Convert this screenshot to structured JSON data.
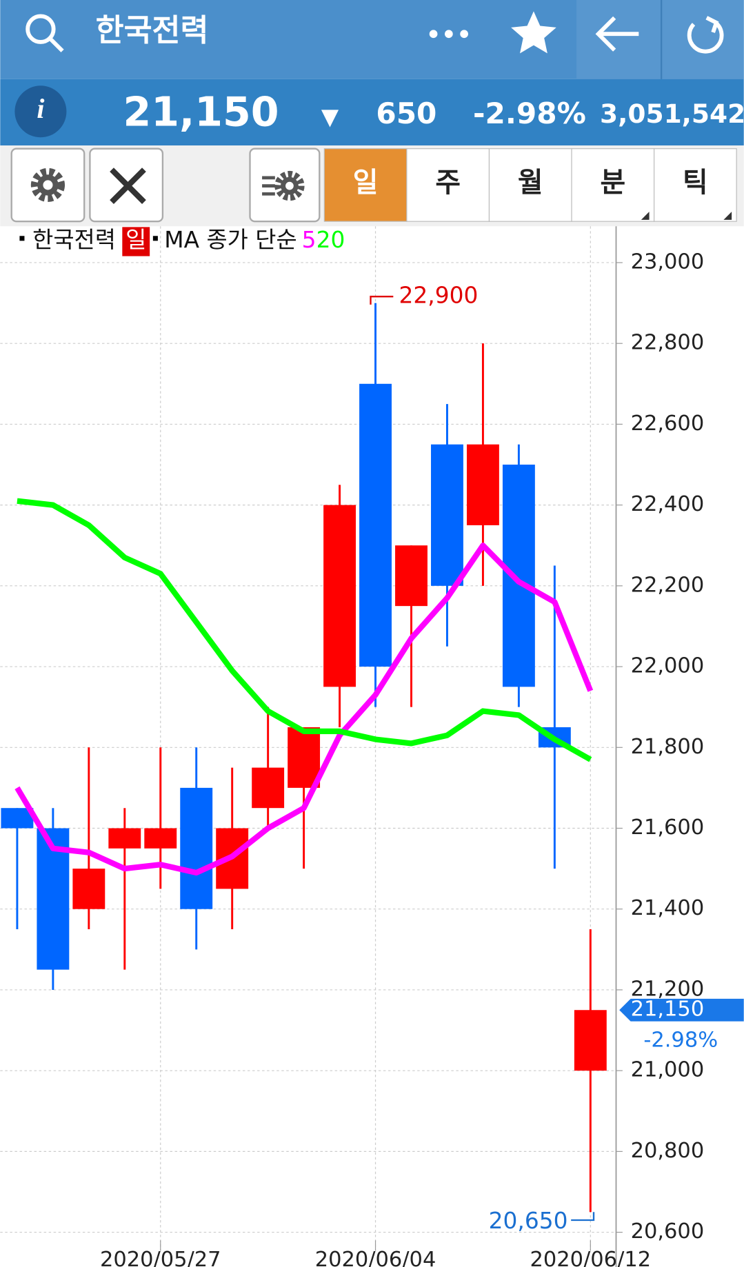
{
  "header": {
    "title": "한국전력"
  },
  "quote": {
    "info": "i",
    "price": "21,150",
    "arrow": "▼",
    "change": "650",
    "change_pct": "-2.98%",
    "volume": "3,051,542"
  },
  "tabs": [
    "일",
    "주",
    "월",
    "분",
    "틱"
  ],
  "chart_data": {
    "type": "candlestick",
    "name": "한국전력",
    "period": "일",
    "ma_label": "MA 종가 단순",
    "categories": [
      null,
      null,
      null,
      null,
      "2020/05/27",
      null,
      null,
      null,
      null,
      null,
      "2020/06/04",
      null,
      null,
      null,
      null,
      null,
      "2020/06/12"
    ],
    "open": [
      21650,
      21600,
      21400,
      21550,
      21550,
      21700,
      21450,
      21650,
      21700,
      21950,
      22700,
      22150,
      22550,
      22350,
      22500,
      21850,
      21000
    ],
    "high": [
      21650,
      21650,
      21800,
      21650,
      21800,
      21800,
      21750,
      21900,
      21850,
      22450,
      22900,
      22300,
      22650,
      22800,
      22550,
      22250,
      21350
    ],
    "low": [
      21350,
      21200,
      21350,
      21250,
      21450,
      21300,
      21350,
      21600,
      21500,
      21850,
      21900,
      21900,
      22050,
      22200,
      21900,
      21500,
      20650
    ],
    "close": [
      21600,
      21250,
      21500,
      21600,
      21600,
      21400,
      21600,
      21750,
      21850,
      22400,
      22000,
      22300,
      22200,
      22550,
      21950,
      21800,
      21150
    ],
    "up_color": "#ff0000",
    "down_color": "#0066ff",
    "series": [
      {
        "name": "5",
        "color": "#ff00ff",
        "values": [
          21700,
          21550,
          21540,
          21500,
          21510,
          21490,
          21530,
          21600,
          21650,
          21830,
          21930,
          22070,
          22170,
          22300,
          22210,
          22160,
          21940
        ]
      },
      {
        "name": "20",
        "color": "#00ff00",
        "values": [
          22410,
          22400,
          22350,
          22270,
          22230,
          22110,
          21990,
          21890,
          21840,
          21840,
          21820,
          21810,
          21830,
          21890,
          21880,
          21820,
          21770
        ]
      }
    ],
    "ylim": [
      20580,
      23080
    ],
    "yticks": [
      {
        "value": 20600,
        "label": "20,600"
      },
      {
        "value": 20800,
        "label": "20,800"
      },
      {
        "value": 21000,
        "label": "21,000"
      },
      {
        "value": 21200,
        "label": "21,200"
      },
      {
        "value": 21400,
        "label": "21,400"
      },
      {
        "value": 21600,
        "label": "21,600"
      },
      {
        "value": 21800,
        "label": "21,800"
      },
      {
        "value": 22000,
        "label": "22,000"
      },
      {
        "value": 22200,
        "label": "22,200"
      },
      {
        "value": 22400,
        "label": "22,400"
      },
      {
        "value": 22600,
        "label": "22,600"
      },
      {
        "value": 22800,
        "label": "22,800"
      },
      {
        "value": 23000,
        "label": "23,000"
      }
    ],
    "grid": true,
    "high_mark": {
      "value": 22900,
      "label": "22,900"
    },
    "low_mark": {
      "value": 20650,
      "label": "20,650"
    },
    "last_price": {
      "value": 21150,
      "label": "21,150"
    },
    "last_change": "-2.98%"
  }
}
